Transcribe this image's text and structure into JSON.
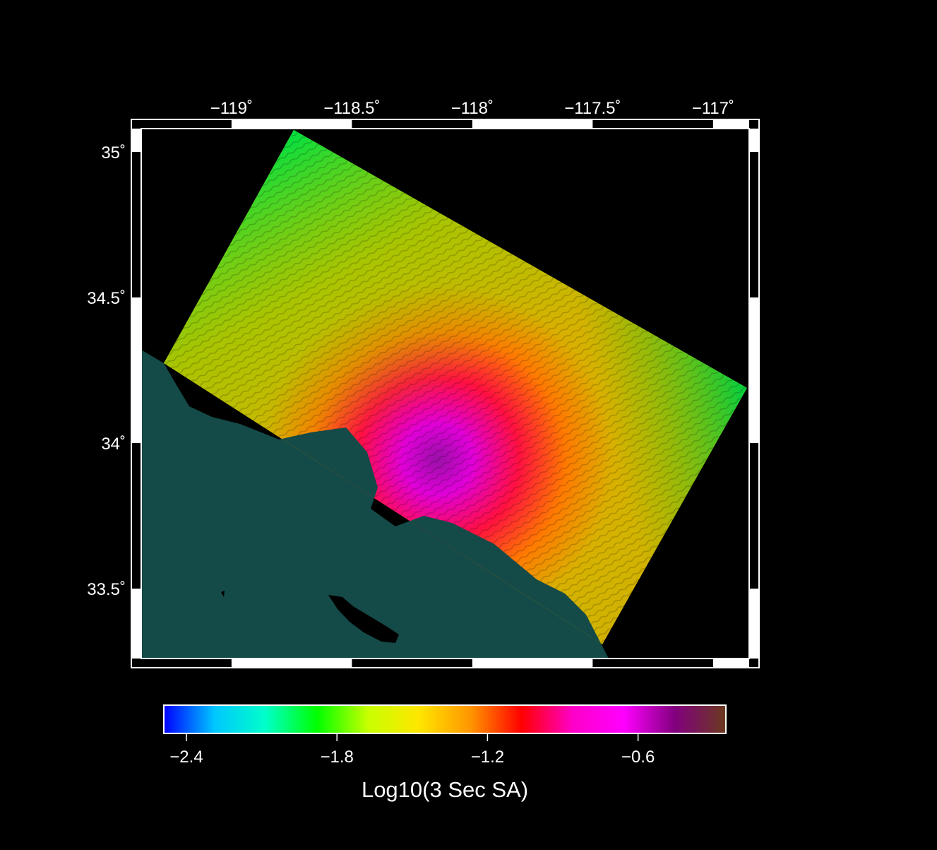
{
  "map": {
    "projection": "geographic",
    "lon_range": [
      -119.375,
      -116.85
    ],
    "lat_range": [
      33.26,
      35.08
    ],
    "lon_ticks": [
      {
        "value": -119,
        "label": "−119˚"
      },
      {
        "value": -118.5,
        "label": "−118.5˚"
      },
      {
        "value": -118,
        "label": "−118˚"
      },
      {
        "value": -117.5,
        "label": "−117.5˚"
      },
      {
        "value": -117,
        "label": "−117˚"
      }
    ],
    "lat_ticks": [
      {
        "value": 35,
        "label": "35˚"
      },
      {
        "value": 34.5,
        "label": "34.5˚"
      },
      {
        "value": 34,
        "label": "34˚"
      },
      {
        "value": 33.5,
        "label": "33.5˚"
      }
    ],
    "colors": {
      "background": "#000000",
      "ocean": "#144a47",
      "frame": "#ffffff"
    }
  },
  "colorbar": {
    "label": "Log10(3 Sec SA)",
    "range": [
      -2.49,
      -0.25
    ],
    "ticks": [
      {
        "value": -2.4,
        "label": "−2.4"
      },
      {
        "value": -1.8,
        "label": "−1.8"
      },
      {
        "value": -1.2,
        "label": "−1.2"
      },
      {
        "value": -0.6,
        "label": "−0.6"
      }
    ],
    "stops": [
      "#0000ff",
      "#00c8ff",
      "#00ffc8",
      "#00ff00",
      "#c8ff00",
      "#ffe600",
      "#ff9600",
      "#ff0000",
      "#ff00c8",
      "#ff00ff",
      "#82007f",
      "#6a3a1c"
    ]
  }
}
